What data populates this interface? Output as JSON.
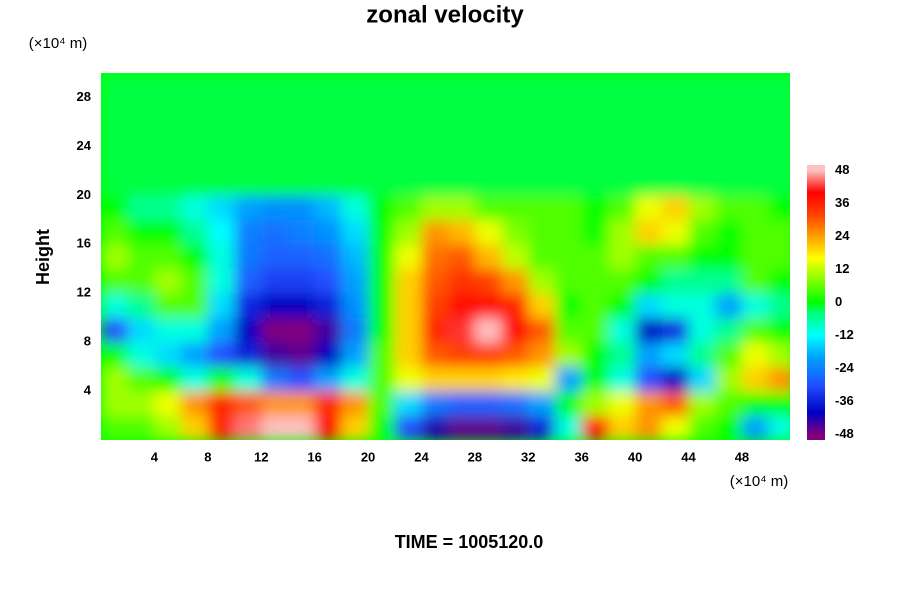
{
  "chart_data": {
    "type": "contour",
    "title": "zonal velocity",
    "x_unit": "(×10⁴ m)",
    "y_unit": "(×10⁴ m)",
    "ylabel": "Height",
    "annotation": "TIME = 1005120.0",
    "x": [
      1,
      3,
      5,
      7,
      9,
      11,
      13,
      15,
      17,
      19,
      21,
      23,
      25,
      27,
      29,
      31,
      33,
      35,
      37,
      39,
      41,
      43,
      45,
      47,
      49,
      51
    ],
    "y": [
      1,
      3,
      5,
      7,
      9,
      11,
      13,
      15,
      17,
      19,
      21,
      23,
      25,
      27,
      29
    ],
    "z": [
      [
        5,
        5,
        10,
        20,
        35,
        45,
        48,
        48,
        40,
        20,
        0,
        -30,
        -42,
        -46,
        -46,
        -44,
        -36,
        -10,
        40,
        20,
        25,
        15,
        5,
        0,
        -20,
        -10
      ],
      [
        10,
        10,
        15,
        25,
        35,
        30,
        25,
        25,
        35,
        25,
        5,
        -15,
        -25,
        -28,
        -28,
        -26,
        -20,
        0,
        10,
        15,
        25,
        30,
        10,
        5,
        0,
        0
      ],
      [
        10,
        5,
        0,
        -10,
        0,
        -10,
        -25,
        -30,
        -20,
        -10,
        5,
        15,
        20,
        20,
        20,
        18,
        15,
        -20,
        0,
        -10,
        -30,
        -40,
        -15,
        10,
        20,
        25
      ],
      [
        0,
        -10,
        -15,
        -20,
        -30,
        -36,
        -44,
        -46,
        -40,
        -20,
        5,
        20,
        30,
        32,
        32,
        30,
        25,
        10,
        0,
        -5,
        -20,
        -15,
        -5,
        5,
        15,
        10
      ],
      [
        -30,
        -15,
        -10,
        -10,
        -20,
        -40,
        -48,
        -48,
        -44,
        -25,
        0,
        20,
        35,
        42,
        48,
        40,
        30,
        5,
        5,
        -10,
        -40,
        -35,
        -10,
        -5,
        5,
        0
      ],
      [
        -10,
        -5,
        5,
        5,
        -15,
        -35,
        -40,
        -40,
        -36,
        -22,
        0,
        20,
        32,
        38,
        38,
        35,
        20,
        0,
        5,
        0,
        -15,
        -10,
        -10,
        -20,
        -10,
        -5
      ],
      [
        5,
        5,
        10,
        5,
        -10,
        -28,
        -32,
        -32,
        -30,
        -20,
        0,
        20,
        30,
        34,
        32,
        25,
        10,
        5,
        5,
        5,
        0,
        -5,
        -5,
        -5,
        5,
        0
      ],
      [
        10,
        5,
        5,
        0,
        -10,
        -25,
        -28,
        -28,
        -26,
        -18,
        0,
        15,
        28,
        30,
        22,
        12,
        5,
        5,
        5,
        10,
        5,
        5,
        0,
        0,
        5,
        5
      ],
      [
        5,
        0,
        0,
        -5,
        -12,
        -24,
        -26,
        -24,
        -22,
        -15,
        0,
        10,
        25,
        22,
        15,
        8,
        5,
        5,
        0,
        10,
        20,
        15,
        5,
        0,
        5,
        5
      ],
      [
        0,
        -5,
        -5,
        -10,
        -15,
        -20,
        -22,
        -22,
        -18,
        -10,
        0,
        5,
        10,
        10,
        5,
        5,
        5,
        5,
        0,
        5,
        15,
        20,
        10,
        5,
        5,
        0
      ],
      [
        -2,
        -2,
        -2,
        -2,
        -2,
        -2,
        -2,
        -2,
        -2,
        -2,
        -2,
        -2,
        -2,
        -2,
        -2,
        -2,
        -2,
        -2,
        -2,
        -2,
        -2,
        -2,
        -2,
        -2,
        -2,
        -2
      ],
      [
        -2,
        -2,
        -2,
        -2,
        -2,
        -2,
        -2,
        -2,
        -2,
        -2,
        -2,
        -2,
        -2,
        -2,
        -2,
        -2,
        -2,
        -2,
        -2,
        -2,
        -2,
        -2,
        -2,
        -2,
        -2,
        -2
      ],
      [
        -2,
        -2,
        -2,
        -2,
        -2,
        -2,
        -2,
        -2,
        -2,
        -2,
        -2,
        -2,
        -2,
        -2,
        -2,
        -2,
        -2,
        -2,
        -2,
        -2,
        -2,
        -2,
        -2,
        -2,
        -2,
        -2
      ],
      [
        -2,
        -2,
        -2,
        -2,
        -2,
        -2,
        -2,
        -2,
        -2,
        -2,
        -2,
        -2,
        -2,
        -2,
        -2,
        -2,
        -2,
        -2,
        -2,
        -2,
        -2,
        -2,
        -2,
        -2,
        -2,
        -2
      ],
      [
        -2,
        -2,
        -2,
        -2,
        -2,
        -2,
        -2,
        -2,
        -2,
        -2,
        -2,
        -2,
        -2,
        -2,
        -2,
        -2,
        -2,
        -2,
        -2,
        -2,
        -2,
        -2,
        -2,
        -2,
        -2,
        -2
      ]
    ],
    "xlim": [
      0,
      51.6
    ],
    "ylim": [
      0,
      30
    ],
    "xticks": [
      4,
      8,
      12,
      16,
      20,
      24,
      28,
      32,
      36,
      40,
      44,
      48
    ],
    "yticks": [
      4,
      8,
      12,
      16,
      20,
      24,
      28
    ],
    "clim": [
      -50,
      50
    ],
    "cticks": [
      -48,
      -36,
      -24,
      -12,
      0,
      12,
      24,
      36,
      48
    ],
    "colorscale": [
      [
        -48,
        "#800080"
      ],
      [
        -40,
        "#0000c0"
      ],
      [
        -30,
        "#2050ff"
      ],
      [
        -20,
        "#00a0ff"
      ],
      [
        -12,
        "#00ffff"
      ],
      [
        -4,
        "#00ff80"
      ],
      [
        0,
        "#00ff00"
      ],
      [
        8,
        "#80ff00"
      ],
      [
        16,
        "#ffff00"
      ],
      [
        24,
        "#ffa000"
      ],
      [
        32,
        "#ff4000"
      ],
      [
        40,
        "#ff0000"
      ],
      [
        48,
        "#ffc0c0"
      ]
    ]
  }
}
